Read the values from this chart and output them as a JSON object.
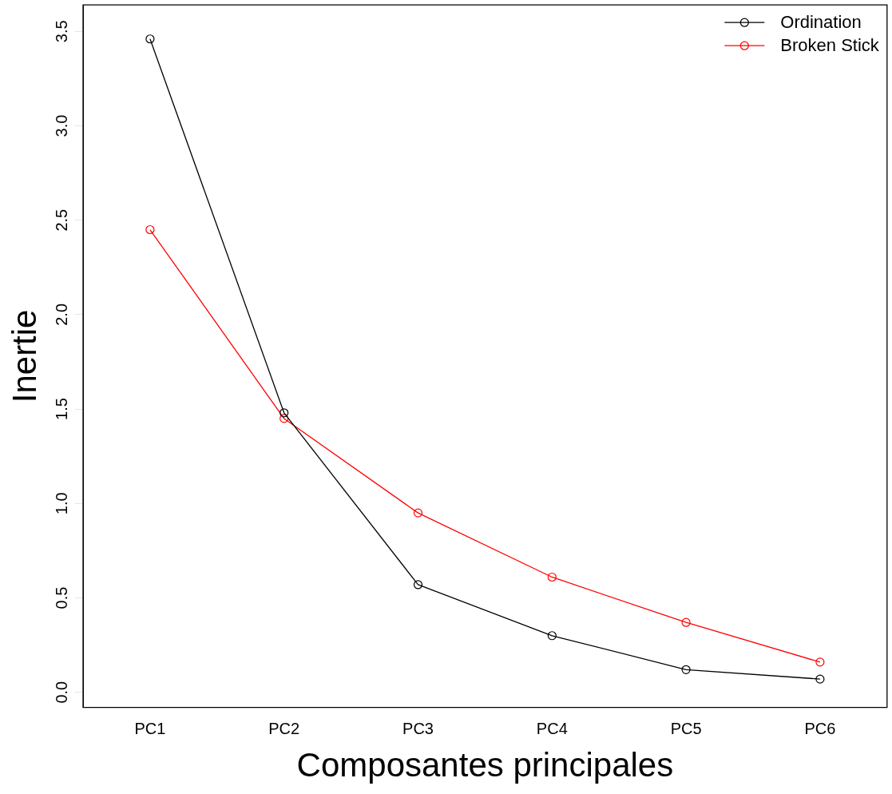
{
  "chart_data": {
    "type": "line",
    "xlabel": "Composantes principales",
    "ylabel": "Inertie",
    "categories": [
      "PC1",
      "PC2",
      "PC3",
      "PC4",
      "PC5",
      "PC6"
    ],
    "series": [
      {
        "name": "Ordination",
        "color": "#000000",
        "values": [
          3.46,
          1.48,
          0.57,
          0.3,
          0.12,
          0.07
        ]
      },
      {
        "name": "Broken Stick",
        "color": "#ff0000",
        "values": [
          2.45,
          1.45,
          0.95,
          0.61,
          0.37,
          0.16
        ]
      }
    ],
    "ylim": [
      -0.08,
      3.64
    ],
    "yticks": [
      {
        "value": 0,
        "label": "0.0"
      },
      {
        "value": 0.5,
        "label": "0.5"
      },
      {
        "value": 1,
        "label": "1.0"
      },
      {
        "value": 1.5,
        "label": "1.5"
      },
      {
        "value": 2,
        "label": "2.0"
      },
      {
        "value": 2.5,
        "label": "2.5"
      },
      {
        "value": 3,
        "label": "3.0"
      },
      {
        "value": 3.5,
        "label": "3.5"
      }
    ],
    "grid": false,
    "legend": "top right",
    "marker": "circle",
    "line_style": "solid"
  }
}
